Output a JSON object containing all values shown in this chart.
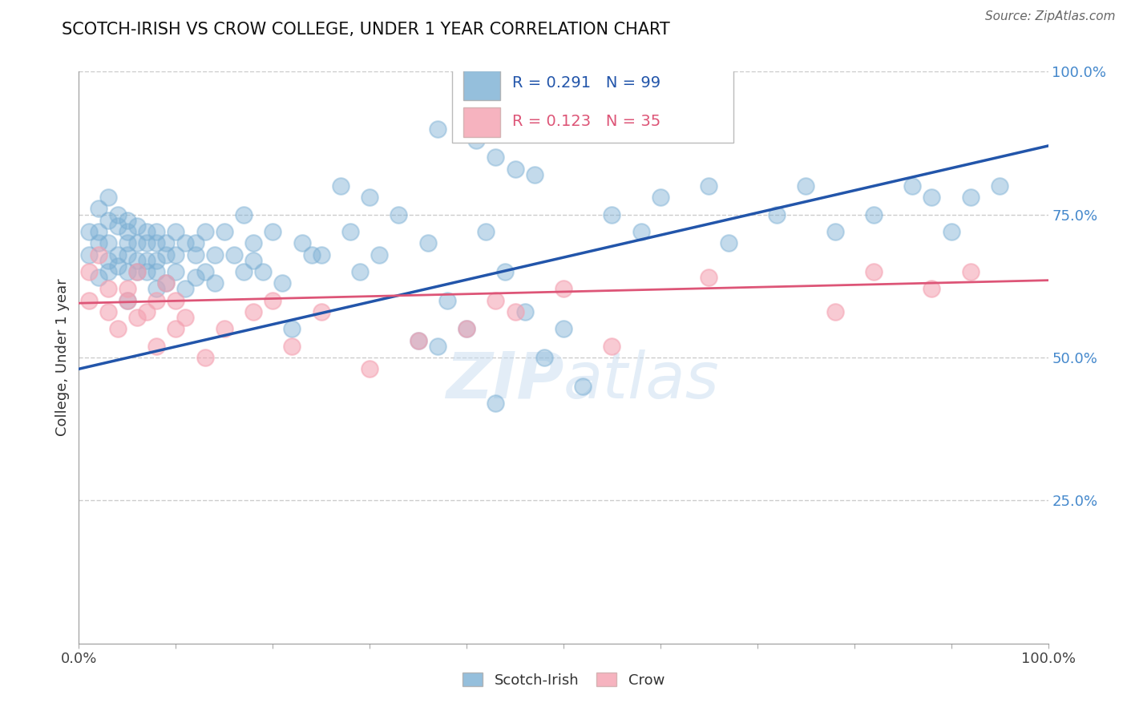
{
  "title": "SCOTCH-IRISH VS CROW COLLEGE, UNDER 1 YEAR CORRELATION CHART",
  "source": "Source: ZipAtlas.com",
  "ylabel": "College, Under 1 year",
  "xlim": [
    0.0,
    1.0
  ],
  "ylim": [
    0.0,
    1.0
  ],
  "blue_R": 0.291,
  "blue_N": 99,
  "pink_R": 0.123,
  "pink_N": 35,
  "blue_color": "#7bafd4",
  "pink_color": "#f4a0b0",
  "blue_line_color": "#2255aa",
  "pink_line_color": "#dd5577",
  "legend_label_blue": "Scotch-Irish",
  "legend_label_pink": "Crow",
  "watermark": "ZIPatlas",
  "blue_line_x0": 0.0,
  "blue_line_y0": 0.48,
  "blue_line_x1": 1.0,
  "blue_line_y1": 0.87,
  "pink_line_x0": 0.0,
  "pink_line_y0": 0.595,
  "pink_line_x1": 1.0,
  "pink_line_y1": 0.635,
  "blue_scatter_x": [
    0.01,
    0.01,
    0.02,
    0.02,
    0.02,
    0.02,
    0.03,
    0.03,
    0.03,
    0.03,
    0.03,
    0.04,
    0.04,
    0.04,
    0.04,
    0.05,
    0.05,
    0.05,
    0.05,
    0.05,
    0.05,
    0.06,
    0.06,
    0.06,
    0.06,
    0.07,
    0.07,
    0.07,
    0.07,
    0.08,
    0.08,
    0.08,
    0.08,
    0.08,
    0.09,
    0.09,
    0.09,
    0.1,
    0.1,
    0.1,
    0.11,
    0.11,
    0.12,
    0.12,
    0.12,
    0.13,
    0.13,
    0.14,
    0.14,
    0.15,
    0.16,
    0.17,
    0.17,
    0.18,
    0.18,
    0.19,
    0.2,
    0.21,
    0.22,
    0.23,
    0.24,
    0.25,
    0.27,
    0.28,
    0.29,
    0.3,
    0.31,
    0.33,
    0.35,
    0.36,
    0.37,
    0.38,
    0.4,
    0.42,
    0.43,
    0.44,
    0.46,
    0.48,
    0.5,
    0.52,
    0.37,
    0.41,
    0.43,
    0.45,
    0.47,
    0.55,
    0.58,
    0.6,
    0.65,
    0.67,
    0.72,
    0.75,
    0.78,
    0.82,
    0.86,
    0.88,
    0.9,
    0.92,
    0.95
  ],
  "blue_scatter_y": [
    0.68,
    0.72,
    0.64,
    0.7,
    0.72,
    0.76,
    0.65,
    0.7,
    0.74,
    0.67,
    0.78,
    0.68,
    0.73,
    0.66,
    0.75,
    0.7,
    0.68,
    0.72,
    0.65,
    0.74,
    0.6,
    0.7,
    0.67,
    0.73,
    0.65,
    0.72,
    0.67,
    0.7,
    0.65,
    0.7,
    0.67,
    0.65,
    0.72,
    0.62,
    0.68,
    0.63,
    0.7,
    0.68,
    0.65,
    0.72,
    0.7,
    0.62,
    0.68,
    0.64,
    0.7,
    0.65,
    0.72,
    0.63,
    0.68,
    0.72,
    0.68,
    0.65,
    0.75,
    0.7,
    0.67,
    0.65,
    0.72,
    0.63,
    0.55,
    0.7,
    0.68,
    0.68,
    0.8,
    0.72,
    0.65,
    0.78,
    0.68,
    0.75,
    0.53,
    0.7,
    0.52,
    0.6,
    0.55,
    0.72,
    0.42,
    0.65,
    0.58,
    0.5,
    0.55,
    0.45,
    0.9,
    0.88,
    0.85,
    0.83,
    0.82,
    0.75,
    0.72,
    0.78,
    0.8,
    0.7,
    0.75,
    0.8,
    0.72,
    0.75,
    0.8,
    0.78,
    0.72,
    0.78,
    0.8
  ],
  "pink_scatter_x": [
    0.01,
    0.01,
    0.02,
    0.03,
    0.03,
    0.04,
    0.05,
    0.05,
    0.06,
    0.06,
    0.07,
    0.08,
    0.08,
    0.09,
    0.1,
    0.1,
    0.11,
    0.13,
    0.15,
    0.18,
    0.2,
    0.22,
    0.25,
    0.3,
    0.35,
    0.4,
    0.43,
    0.45,
    0.5,
    0.55,
    0.65,
    0.78,
    0.82,
    0.88,
    0.92
  ],
  "pink_scatter_y": [
    0.6,
    0.65,
    0.68,
    0.58,
    0.62,
    0.55,
    0.6,
    0.62,
    0.57,
    0.65,
    0.58,
    0.52,
    0.6,
    0.63,
    0.55,
    0.6,
    0.57,
    0.5,
    0.55,
    0.58,
    0.6,
    0.52,
    0.58,
    0.48,
    0.53,
    0.55,
    0.6,
    0.58,
    0.62,
    0.52,
    0.64,
    0.58,
    0.65,
    0.62,
    0.65
  ]
}
